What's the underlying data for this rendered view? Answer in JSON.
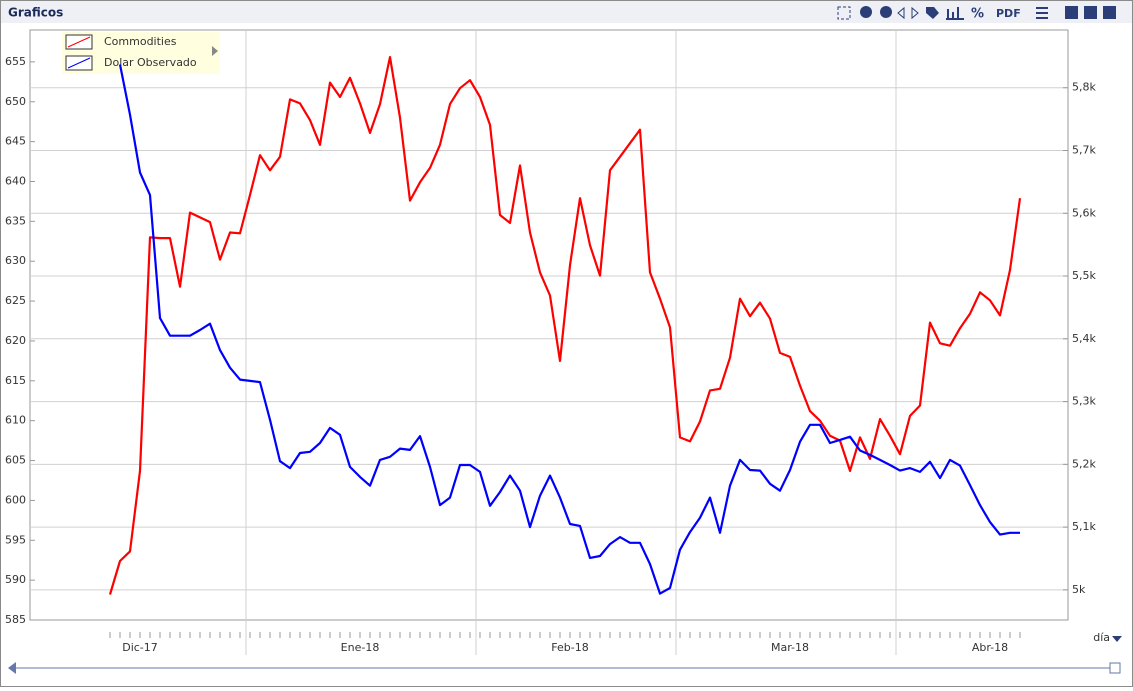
{
  "window": {
    "title": "Graficos",
    "pdf": "PDF",
    "period": "día"
  },
  "chart_data": {
    "type": "line",
    "legend": "top-left",
    "grid": true,
    "categories": [
      null,
      null,
      null,
      "Dic-17",
      null,
      null,
      null,
      null,
      null,
      null,
      null,
      null,
      null,
      null,
      null,
      null,
      null,
      null,
      null,
      null,
      null,
      null,
      null,
      null,
      null,
      "Ene-18",
      null,
      null,
      null,
      null,
      null,
      null,
      null,
      null,
      null,
      null,
      null,
      null,
      null,
      null,
      null,
      null,
      null,
      null,
      null,
      null,
      "Feb-18",
      null,
      null,
      null,
      null,
      null,
      null,
      null,
      null,
      null,
      null,
      null,
      null,
      null,
      null,
      null,
      null,
      null,
      null,
      null,
      null,
      null,
      "Mar-18",
      null,
      null,
      null,
      null,
      null,
      null,
      null,
      null,
      null,
      null,
      null,
      null,
      null,
      null,
      null,
      null,
      null,
      null,
      null,
      "Abr-18",
      null,
      null,
      null
    ],
    "series": [
      {
        "name": "Commodities",
        "color": "#ff0000",
        "values": [
          588.2,
          592.4,
          593.6,
          603.7,
          633,
          632.9,
          632.9,
          626.8,
          636.1,
          635.5,
          634.9,
          630.2,
          633.6,
          633.5,
          638.3,
          643.3,
          641.4,
          643.1,
          650.3,
          649.8,
          647.7,
          644.6,
          652.4,
          650.6,
          653,
          649.8,
          646.1,
          649.7,
          655.6,
          648,
          637.6,
          639.9,
          641.7,
          644.6,
          649.7,
          651.7,
          652.7,
          650.6,
          647.1,
          635.8,
          634.8,
          642,
          633.6,
          628.6,
          625.7,
          617.5,
          629.5,
          637.9,
          632,
          628.2,
          641.4,
          643.1,
          644.8,
          646.5,
          628.6,
          625.3,
          621.7,
          607.9,
          607.4,
          609.9,
          613.8,
          614,
          617.9,
          625.3,
          623.1,
          624.8,
          622.8,
          618.5,
          618,
          614.4,
          611.2,
          610,
          608.1,
          607.5,
          603.7,
          607.9,
          605.2,
          610.2,
          608.1,
          605.8,
          610.6,
          611.9,
          622.3,
          619.7,
          619.4,
          621.6,
          623.4,
          626.1,
          625.1,
          623.2,
          628.9,
          637.9
        ]
      },
      {
        "name": "Dolar Observado",
        "color": "#0000ff",
        "axis": "y2",
        "values": [
          null,
          5837,
          5757,
          5665,
          5629,
          5433,
          5405,
          5405,
          5405,
          5414,
          5424,
          5382,
          5354,
          5335,
          5333,
          5331,
          5271,
          5205,
          5194,
          5218,
          5220,
          5234,
          5258,
          5247,
          5196,
          5180,
          5166,
          5207,
          5212,
          5225,
          5223,
          5245,
          5196,
          5135,
          5147,
          5199,
          5199,
          5188,
          5134,
          5156,
          5182,
          5158,
          5100,
          5150,
          5182,
          5147,
          5105,
          5102,
          5051,
          5054,
          5073,
          5084,
          5075,
          5075,
          5041,
          4994,
          5003,
          5064,
          5092,
          5115,
          5147,
          5091,
          5166,
          5207,
          5191,
          5190,
          5169,
          5158,
          5191,
          5236,
          5263,
          5263,
          5234,
          5239,
          5244,
          5222,
          5215,
          5207,
          5199,
          5190,
          5194,
          5188,
          5204,
          5178,
          5207,
          5198,
          5167,
          5135,
          5108,
          5088,
          5091,
          5091
        ]
      }
    ],
    "ylim": [
      585,
      659
    ],
    "yticks": [
      585,
      590,
      595,
      600,
      605,
      610,
      615,
      620,
      625,
      630,
      635,
      640,
      645,
      650,
      655
    ],
    "y2lim": [
      4952,
      5892
    ],
    "y2ticks": [
      {
        "value": 5000,
        "label": "5k"
      },
      {
        "value": 5100,
        "label": "5,1k"
      },
      {
        "value": 5200,
        "label": "5,2k"
      },
      {
        "value": 5300,
        "label": "5,3k"
      },
      {
        "value": 5400,
        "label": "5,4k"
      },
      {
        "value": 5500,
        "label": "5,5k"
      },
      {
        "value": 5600,
        "label": "5,6k"
      },
      {
        "value": 5700,
        "label": "5,7k"
      },
      {
        "value": 5800,
        "label": "5,8k"
      }
    ]
  }
}
